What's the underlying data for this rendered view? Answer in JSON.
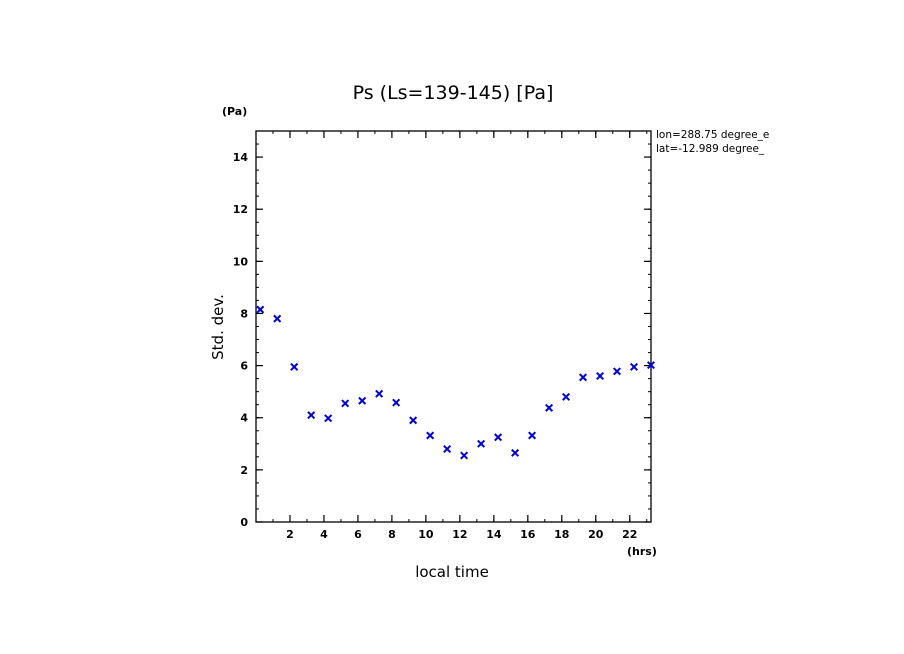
{
  "chart_data": {
    "type": "scatter",
    "title": "Ps (Ls=139-145) [Pa]",
    "xlabel": "local time",
    "ylabel": "Std. dev.",
    "x_unit": "(hrs)",
    "y_unit": "(Pa)",
    "xlim": [
      0,
      23.25
    ],
    "ylim": [
      0,
      15
    ],
    "xticks": [
      2,
      4,
      6,
      8,
      10,
      12,
      14,
      16,
      18,
      20,
      22
    ],
    "yticks": [
      0,
      2,
      4,
      6,
      8,
      10,
      12,
      14
    ],
    "annotations": [
      "lon=288.75 degree_e",
      "lat=-12.989 degree_"
    ],
    "marker_color": "#0000dd",
    "series": [
      {
        "name": "Ps std. dev.",
        "x": [
          0.25,
          1.25,
          2.25,
          3.25,
          4.25,
          5.25,
          6.25,
          7.25,
          8.25,
          9.25,
          10.25,
          11.25,
          12.25,
          13.25,
          14.25,
          15.25,
          16.25,
          17.25,
          18.25,
          19.25,
          20.25,
          21.25,
          22.25,
          23.25
        ],
        "y": [
          8.15,
          7.8,
          5.95,
          4.1,
          3.98,
          4.55,
          4.65,
          4.92,
          4.58,
          3.9,
          3.32,
          2.8,
          2.55,
          3.0,
          3.25,
          2.65,
          3.32,
          4.38,
          4.8,
          5.55,
          5.6,
          5.78,
          5.95,
          6.02
        ]
      }
    ]
  }
}
